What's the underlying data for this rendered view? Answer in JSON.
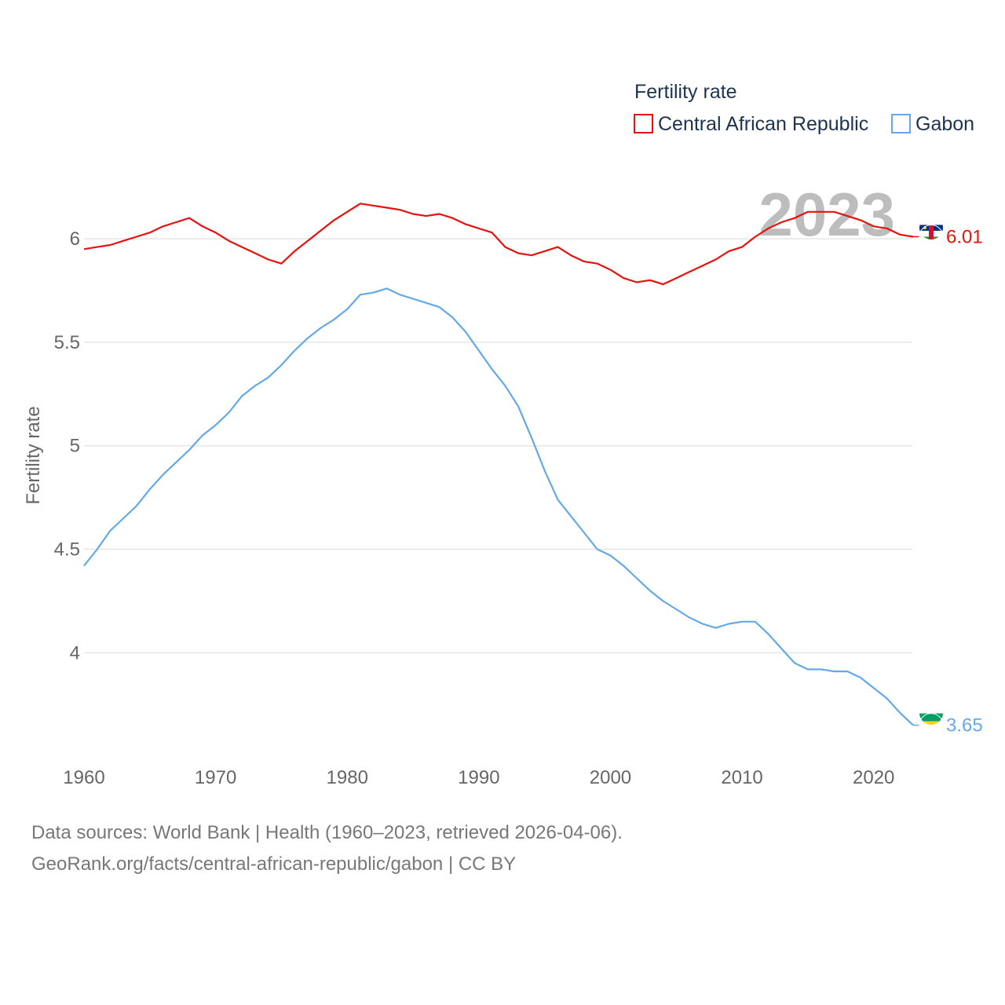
{
  "colors": {
    "car": "#e8110d",
    "gabon": "#63a9e8",
    "grid": "#e6e6e6",
    "text_dark": "#1d3350",
    "text_muted": "#666666"
  },
  "chart_data": {
    "type": "line",
    "title": "Fertility rate",
    "ylabel": "Fertility rate",
    "xlabel": "",
    "year_label": "2023",
    "xlim": [
      1960,
      2023
    ],
    "ylim": [
      3.55,
      6.3
    ],
    "x_ticks": [
      1960,
      1970,
      1980,
      1990,
      2000,
      2010,
      2020
    ],
    "y_ticks": [
      4,
      4.5,
      5,
      5.5,
      6
    ],
    "legend_position": "top-right",
    "x": [
      1960,
      1961,
      1962,
      1963,
      1964,
      1965,
      1966,
      1967,
      1968,
      1969,
      1970,
      1971,
      1972,
      1973,
      1974,
      1975,
      1976,
      1977,
      1978,
      1979,
      1980,
      1981,
      1982,
      1983,
      1984,
      1985,
      1986,
      1987,
      1988,
      1989,
      1990,
      1991,
      1992,
      1993,
      1994,
      1995,
      1996,
      1997,
      1998,
      1999,
      2000,
      2001,
      2002,
      2003,
      2004,
      2005,
      2006,
      2007,
      2008,
      2009,
      2010,
      2011,
      2012,
      2013,
      2014,
      2015,
      2016,
      2017,
      2018,
      2019,
      2020,
      2021,
      2022,
      2023
    ],
    "series": [
      {
        "name": "Central African Republic",
        "color": "#e8110d",
        "end_label": "6.01",
        "values": [
          5.95,
          5.96,
          5.97,
          5.99,
          6.01,
          6.03,
          6.06,
          6.08,
          6.1,
          6.06,
          6.03,
          5.99,
          5.96,
          5.93,
          5.9,
          5.88,
          5.94,
          5.99,
          6.04,
          6.09,
          6.13,
          6.17,
          6.16,
          6.15,
          6.14,
          6.12,
          6.11,
          6.12,
          6.1,
          6.07,
          6.05,
          6.03,
          5.96,
          5.93,
          5.92,
          5.94,
          5.96,
          5.92,
          5.89,
          5.88,
          5.85,
          5.81,
          5.79,
          5.8,
          5.78,
          5.81,
          5.84,
          5.87,
          5.9,
          5.94,
          5.96,
          6.01,
          6.05,
          6.08,
          6.1,
          6.13,
          6.13,
          6.13,
          6.11,
          6.09,
          6.06,
          6.05,
          6.02,
          6.01
        ]
      },
      {
        "name": "Gabon",
        "color": "#63a9e8",
        "end_label": "3.65",
        "values": [
          4.42,
          4.5,
          4.59,
          4.65,
          4.71,
          4.79,
          4.86,
          4.92,
          4.98,
          5.05,
          5.1,
          5.16,
          5.24,
          5.29,
          5.33,
          5.39,
          5.46,
          5.52,
          5.57,
          5.61,
          5.66,
          5.73,
          5.74,
          5.76,
          5.73,
          5.71,
          5.69,
          5.67,
          5.62,
          5.55,
          5.46,
          5.37,
          5.29,
          5.19,
          5.04,
          4.88,
          4.74,
          4.66,
          4.58,
          4.5,
          4.47,
          4.42,
          4.36,
          4.3,
          4.25,
          4.21,
          4.17,
          4.14,
          4.12,
          4.14,
          4.15,
          4.15,
          4.09,
          4.02,
          3.95,
          3.92,
          3.92,
          3.91,
          3.91,
          3.88,
          3.83,
          3.78,
          3.71,
          3.65
        ]
      }
    ]
  },
  "footer": {
    "line1": "Data sources: World Bank | Health (1960–2023, retrieved 2026-04-06).",
    "line2": "GeoRank.org/facts/central-african-republic/gabon | CC BY"
  }
}
